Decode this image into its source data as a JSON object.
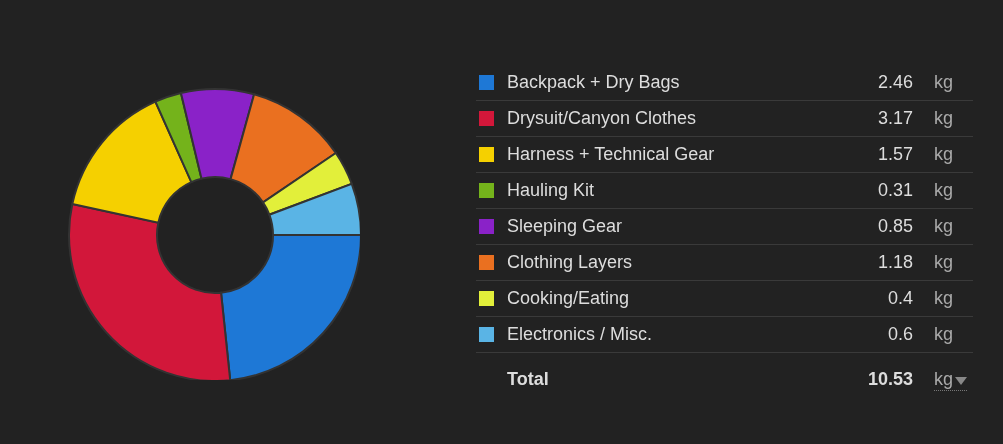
{
  "chart_data": {
    "type": "donut",
    "categories": [
      "Backpack + Dry Bags",
      "Drysuit/Canyon Clothes",
      "Harness + Technical Gear",
      "Hauling Kit",
      "Sleeping Gear",
      "Clothing Layers",
      "Cooking/Eating",
      "Electronics / Misc."
    ],
    "values": [
      2.46,
      3.17,
      1.57,
      0.31,
      0.85,
      1.18,
      0.4,
      0.6
    ],
    "colors": [
      "#1e78d6",
      "#d2173a",
      "#f5d000",
      "#74b31b",
      "#8a22c8",
      "#ea7020",
      "#e2ef3a",
      "#5ab4e5"
    ],
    "data_labels": true,
    "legend": "right",
    "annotations": [
      "kg",
      "Total",
      "10.53"
    ]
  }
}
